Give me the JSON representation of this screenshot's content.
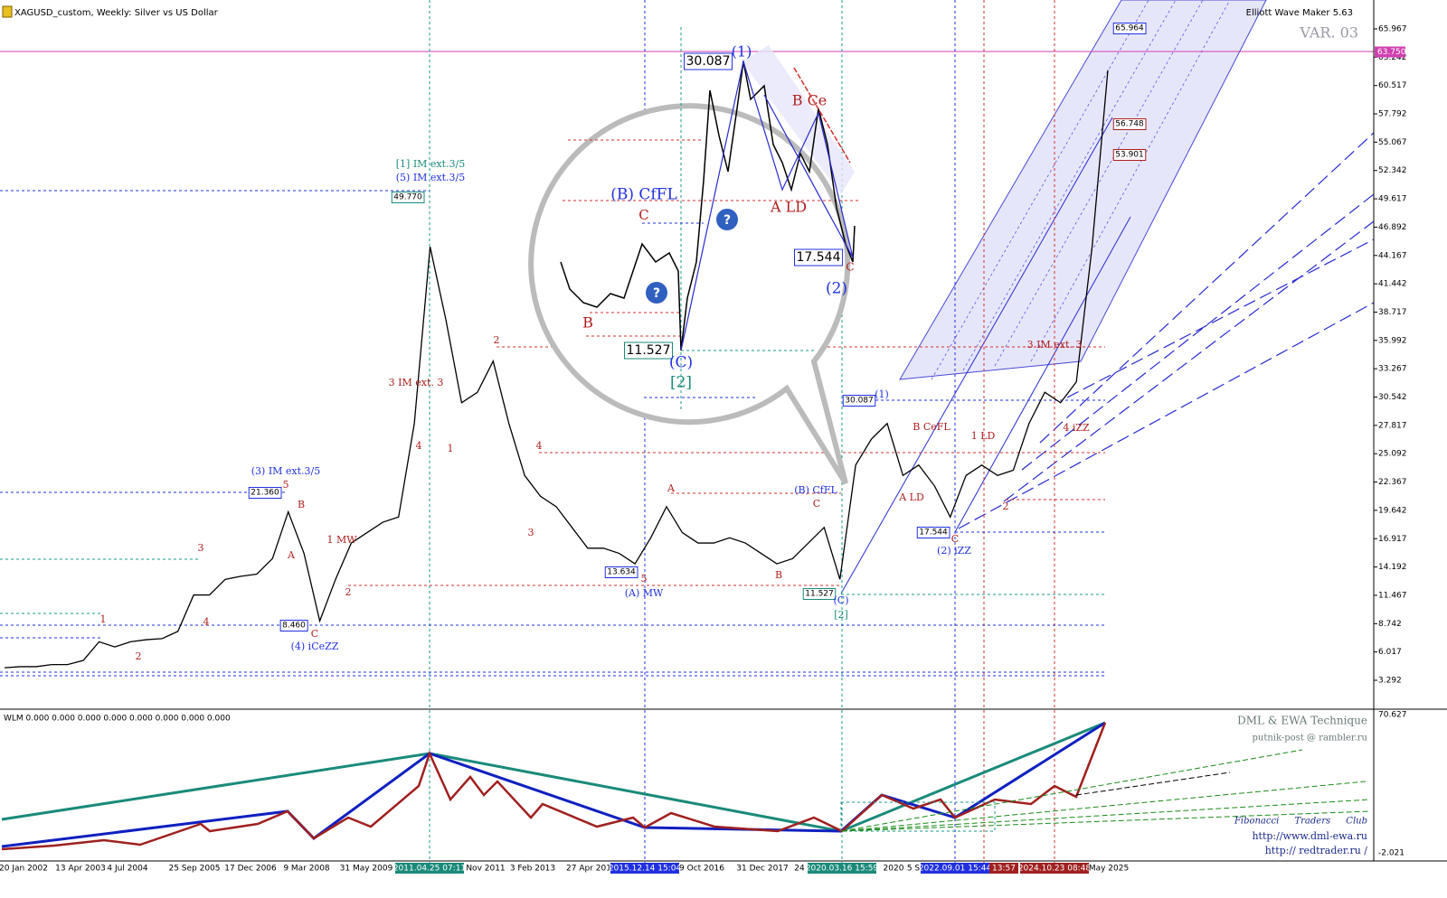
{
  "header": {
    "title": "XAGUSD_custom, Weekly:  Silver vs US Dollar",
    "tool": "Elliott Wave Maker 5.63",
    "variant": "VAR. 03"
  },
  "chart_data": {
    "type": "line",
    "yticks": [
      65.967,
      63.242,
      60.517,
      57.792,
      55.067,
      52.342,
      49.617,
      46.892,
      44.167,
      41.442,
      38.717,
      35.992,
      33.267,
      30.542,
      27.817,
      25.092,
      22.367,
      19.642,
      16.917,
      14.192,
      11.467,
      8.742,
      6.017,
      3.292
    ],
    "current_price": {
      "value": 63.75,
      "label": "63.750"
    },
    "series": [
      {
        "name": "XAGUSD",
        "color": "#000000",
        "values": [
          4.5,
          4.6,
          4.6,
          4.8,
          4.8,
          5.2,
          7.0,
          6.5,
          7.0,
          7.2,
          7.3,
          8.0,
          11.5,
          11.5,
          13.0,
          13.3,
          13.5,
          15.0,
          19.5,
          15.5,
          9.0,
          13.0,
          16.5,
          17.5,
          18.5,
          19.0,
          28.0,
          45.0,
          38.0,
          30.0,
          31.0,
          34.0,
          28.0,
          23.0,
          21.0,
          20.0,
          18.0,
          16.0,
          16.0,
          15.5,
          14.5,
          17.0,
          20.0,
          17.5,
          16.5,
          16.5,
          17.0,
          16.5,
          15.5,
          14.5,
          15.0,
          16.5,
          18.0,
          13.0,
          24.0,
          26.5,
          28.0,
          23.0,
          24.0,
          22.0,
          19.0,
          23.0,
          24.0,
          23.0,
          23.5,
          28.0,
          31.0,
          30.0,
          32.0,
          45.0,
          62.0
        ]
      }
    ]
  },
  "time_axis": [
    "20 Jan 2002",
    "13 Apr 2003",
    "4 Jul 2004",
    "25 Sep 2005",
    "17 Dec 2006",
    "9 Mar 2008",
    "31 May 2009",
    "2011.04.25 07:11",
    "Nov 2011",
    "3 Feb 2013",
    "27 Apr 201",
    "2015.12.14 15:04",
    "9 Oct 2016",
    "31 Dec 2017",
    "24",
    "2020.03.16 15:59",
    "2020",
    "5 S",
    "2022.09.01 15:44",
    "13:57",
    "2024.10.23 08:48",
    "May 2025"
  ],
  "annotations": [
    "[1] IM ext.3/5",
    "(5) IM ext.3/5",
    "49.770",
    "3 IM ext. 3",
    "(3) IM ext.3/5",
    "21.360",
    "8.460",
    "(4) iCeZZ",
    "1 MW",
    "13.634",
    "(A) MW",
    "(B) CfFL",
    "11.527",
    "(C)",
    "[2]",
    "30.087",
    "(1)",
    "B CeFL",
    "A LD",
    "1 LD",
    "17.544",
    "(2) iZZ",
    "3 IM ext. 3",
    "4 iZZ",
    "65.964",
    "56.748",
    "53.901",
    "1",
    "2",
    "3",
    "4",
    "5",
    "A",
    "B",
    "C",
    "2",
    "4",
    "1",
    "2",
    "3",
    "4",
    "5",
    "A",
    "B",
    "C",
    "2",
    "C"
  ],
  "zoom": [
    "30.087",
    "(1)",
    "B Ce",
    "(B) CfFL",
    "C",
    "A LD",
    "17.544",
    "C",
    "(2)",
    "B",
    "11.527",
    "(C)",
    "[2]"
  ],
  "indicator": {
    "title": "WLM 0.000 0.000 0.000 0.000 0.000 0.000 0.000 0.000",
    "brand": "DML & EWA Technique",
    "email": "putnik-post @ rambler.ru",
    "club": "Fibonacci Traders Club",
    "site1": "http://www.dml-ewa.ru",
    "site2": "http:// redtrader.ru /",
    "axis_top": "70.627",
    "axis_bottom": "-2.021"
  }
}
